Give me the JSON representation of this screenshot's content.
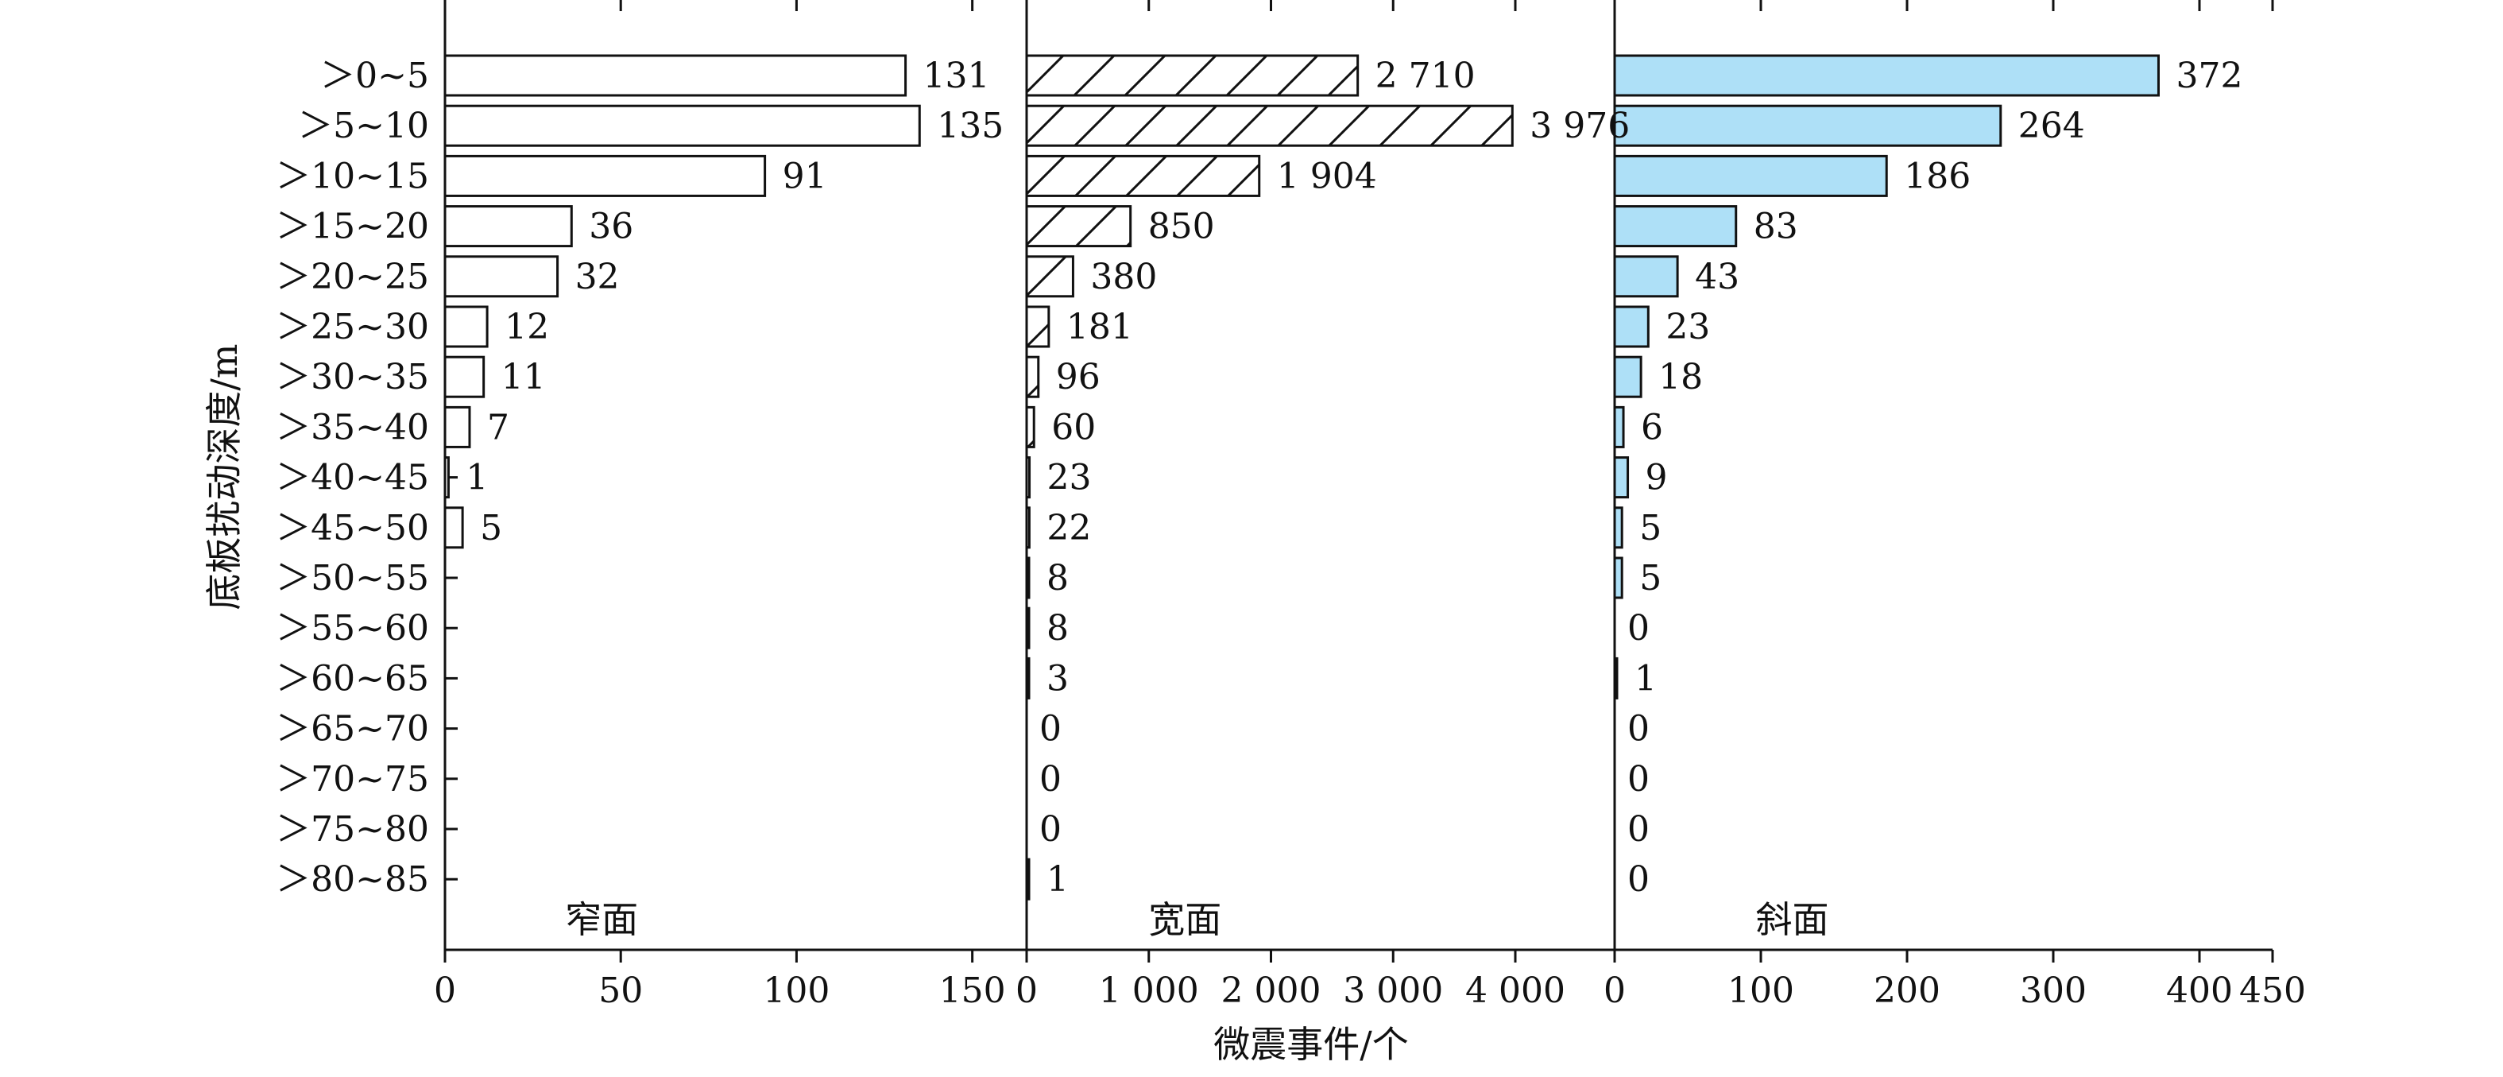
{
  "categories_label": "底板扰动深度/m",
  "x_label": "微震事件/个",
  "chart_data": [
    {
      "type": "bar",
      "orientation": "horizontal",
      "panel_title": "窄面",
      "categories": [
        "＞0~5",
        "＞5~10",
        "＞10~15",
        "＞15~20",
        "＞20~25",
        "＞25~30",
        "＞30~35",
        "＞35~40",
        "＞40~45",
        "＞45~50",
        "＞50~55",
        "＞55~60",
        "＞60~65",
        "＞65~70",
        "＞70~75",
        "＞75~80",
        "＞80~85"
      ],
      "values": [
        131,
        135,
        91,
        36,
        32,
        12,
        11,
        7,
        1,
        5,
        null,
        null,
        null,
        null,
        null,
        null,
        null
      ],
      "value_labels": [
        "131",
        "135",
        "91",
        "36",
        "32",
        "12",
        "11",
        "7",
        "1",
        "5",
        "",
        "",
        "",
        "",
        "",
        "",
        ""
      ],
      "xlim": [
        0,
        165
      ],
      "ticks": [
        0,
        50,
        100,
        150
      ],
      "tick_labels": [
        "0",
        "50",
        "100",
        "150"
      ],
      "fill": "#ffffff",
      "pattern": "none",
      "ylabel": "底板扰动深度/m",
      "xlabel": "微震事件/个"
    },
    {
      "type": "bar",
      "orientation": "horizontal",
      "panel_title": "宽面",
      "categories": [
        "＞0~5",
        "＞5~10",
        "＞10~15",
        "＞15~20",
        "＞20~25",
        "＞25~30",
        "＞30~35",
        "＞35~40",
        "＞40~45",
        "＞45~50",
        "＞50~55",
        "＞55~60",
        "＞60~65",
        "＞65~70",
        "＞70~75",
        "＞75~80",
        "＞80~85"
      ],
      "values": [
        2710,
        3976,
        1904,
        850,
        380,
        181,
        96,
        60,
        23,
        22,
        8,
        8,
        3,
        0,
        0,
        0,
        1
      ],
      "value_labels": [
        "2 710",
        "3 976",
        "1 904",
        "850",
        "380",
        "181",
        "96",
        "60",
        "23",
        "22",
        "8",
        "8",
        "3",
        "0",
        "0",
        "0",
        "1"
      ],
      "xlim": [
        0,
        4800
      ],
      "ticks": [
        0,
        1000,
        2000,
        3000,
        4000
      ],
      "tick_labels": [
        "0",
        "1 000",
        "2 000",
        "3 000",
        "4 000"
      ],
      "fill": "#ffffff",
      "pattern": "diagonal-hatch",
      "xlabel": "微震事件/个"
    },
    {
      "type": "bar",
      "orientation": "horizontal",
      "panel_title": "斜面",
      "categories": [
        "＞0~5",
        "＞5~10",
        "＞10~15",
        "＞15~20",
        "＞20~25",
        "＞25~30",
        "＞30~35",
        "＞35~40",
        "＞40~45",
        "＞45~50",
        "＞50~55",
        "＞55~60",
        "＞60~65",
        "＞65~70",
        "＞70~75",
        "＞75~80",
        "＞80~85"
      ],
      "values": [
        372,
        264,
        186,
        83,
        43,
        23,
        18,
        6,
        9,
        5,
        5,
        0,
        1,
        0,
        0,
        0,
        0
      ],
      "value_labels": [
        "372",
        "264",
        "186",
        "83",
        "43",
        "23",
        "18",
        "6",
        "9",
        "5",
        "5",
        "0",
        "1",
        "0",
        "0",
        "0",
        "0"
      ],
      "xlim": [
        0,
        450
      ],
      "ticks": [
        0,
        100,
        200,
        300,
        400,
        450
      ],
      "tick_labels": [
        "0",
        "100",
        "200",
        "300",
        "400",
        "450"
      ],
      "fill": "#aee0f7",
      "pattern": "none",
      "xlabel": "微震事件/个"
    }
  ]
}
